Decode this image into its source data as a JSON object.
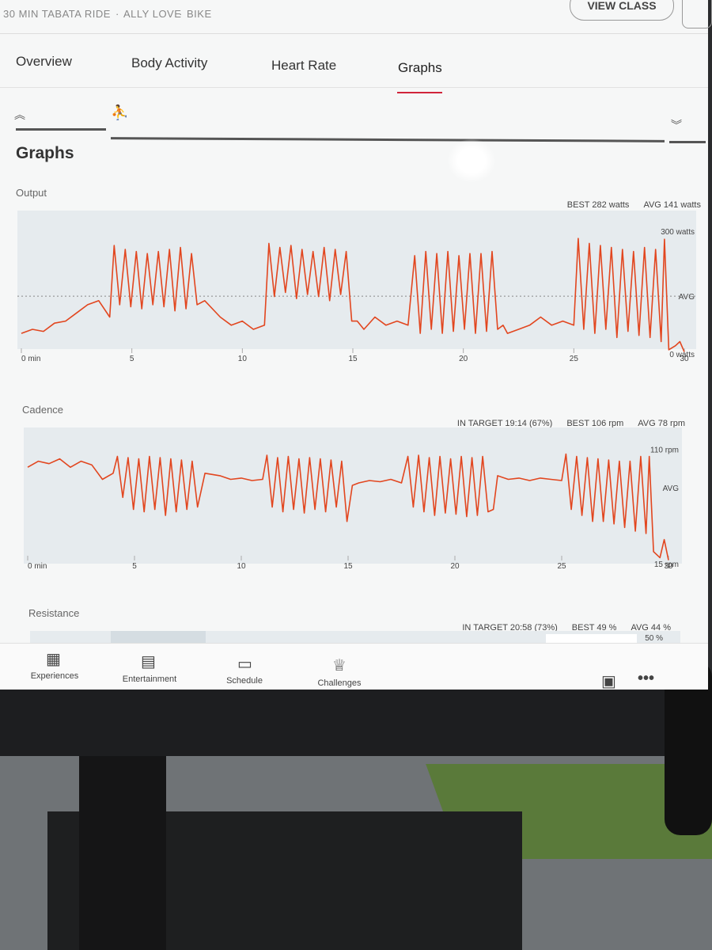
{
  "header": {
    "meta": [
      "30 MIN TABATA RIDE",
      "ALLY LOVE",
      "BIKE"
    ],
    "button": "VIEW CLASS"
  },
  "tabs": [
    "Overview",
    "Body Activity",
    "Heart Rate",
    "Graphs"
  ],
  "active_tab": 3,
  "section_title": "Graphs",
  "chart_data": [
    {
      "type": "line",
      "title": "Output",
      "stats": [
        "BEST 282 watts",
        "AVG 141 watts"
      ],
      "color": "#e2461f",
      "avg_line": true,
      "xlim": [
        0,
        30
      ],
      "xticks": [
        {
          "value": 0,
          "label": "0 min"
        },
        5,
        10,
        15,
        20,
        25,
        30
      ],
      "ylim": [
        0,
        350
      ],
      "yticks": [
        {
          "value": 300,
          "label": "300 watts"
        },
        {
          "value": 141,
          "label": "AVG"
        },
        {
          "value": 0,
          "label": "0 watts"
        }
      ],
      "x": [
        0,
        0.5,
        1,
        1.5,
        2,
        2.5,
        3,
        3.5,
        4,
        4.2,
        4.45,
        4.7,
        4.95,
        5.2,
        5.45,
        5.7,
        5.95,
        6.2,
        6.45,
        6.7,
        6.95,
        7.2,
        7.45,
        7.7,
        7.95,
        8.3,
        9,
        9.5,
        10,
        10.5,
        11,
        11.2,
        11.45,
        11.7,
        11.95,
        12.2,
        12.45,
        12.7,
        12.95,
        13.2,
        13.45,
        13.7,
        13.95,
        14.2,
        14.45,
        14.7,
        14.95,
        15.2,
        15.5,
        16,
        16.5,
        17,
        17.5,
        17.8,
        18.05,
        18.3,
        18.55,
        18.8,
        19.05,
        19.3,
        19.55,
        19.8,
        20.05,
        20.3,
        20.55,
        20.8,
        21.05,
        21.3,
        21.55,
        21.8,
        22,
        22.5,
        23,
        23.5,
        24,
        24.5,
        25,
        25.2,
        25.45,
        25.7,
        25.95,
        26.2,
        26.45,
        26.7,
        26.95,
        27.2,
        27.45,
        27.7,
        27.95,
        28.2,
        28.45,
        28.7,
        28.95,
        29.1,
        29.3,
        29.6,
        29.8,
        30
      ],
      "values": [
        50,
        60,
        55,
        75,
        80,
        100,
        120,
        130,
        90,
        265,
        120,
        255,
        115,
        250,
        110,
        245,
        120,
        250,
        115,
        255,
        105,
        260,
        110,
        245,
        120,
        130,
        90,
        70,
        80,
        60,
        70,
        270,
        140,
        260,
        150,
        265,
        135,
        255,
        145,
        250,
        140,
        260,
        130,
        255,
        145,
        250,
        80,
        80,
        60,
        90,
        70,
        80,
        70,
        240,
        50,
        250,
        60,
        245,
        50,
        250,
        55,
        240,
        60,
        245,
        50,
        245,
        55,
        250,
        60,
        70,
        50,
        60,
        70,
        90,
        70,
        80,
        70,
        282,
        60,
        270,
        50,
        265,
        60,
        260,
        40,
        255,
        55,
        250,
        45,
        260,
        40,
        255,
        30,
        280,
        10,
        20,
        30,
        5
      ]
    },
    {
      "type": "line",
      "title": "Cadence",
      "stats": [
        "IN TARGET 19:14 (67%)",
        "BEST 106 rpm",
        "AVG 78 rpm"
      ],
      "color": "#e2461f",
      "avg_line": false,
      "xlim": [
        0,
        30
      ],
      "xticks": [
        {
          "value": 0,
          "label": "0 min"
        },
        5,
        10,
        15,
        20,
        25,
        30
      ],
      "ylim": [
        15,
        128
      ],
      "yticks": [
        {
          "value": 110,
          "label": "110 rpm"
        },
        {
          "value": 78,
          "label": "AVG"
        },
        {
          "value": 15,
          "label": "15 rpm"
        }
      ],
      "x": [
        0,
        0.5,
        1,
        1.5,
        2,
        2.5,
        3,
        3.5,
        4,
        4.2,
        4.45,
        4.7,
        4.95,
        5.2,
        5.45,
        5.7,
        5.95,
        6.2,
        6.45,
        6.7,
        6.95,
        7.2,
        7.45,
        7.7,
        7.95,
        8.3,
        9,
        9.5,
        10,
        10.5,
        11,
        11.2,
        11.45,
        11.7,
        11.95,
        12.2,
        12.45,
        12.7,
        12.95,
        13.2,
        13.45,
        13.7,
        13.95,
        14.2,
        14.45,
        14.7,
        14.95,
        15.2,
        15.5,
        16,
        16.5,
        17,
        17.5,
        17.8,
        18.05,
        18.3,
        18.55,
        18.8,
        19.05,
        19.3,
        19.55,
        19.8,
        20.05,
        20.3,
        20.55,
        20.8,
        21.05,
        21.3,
        21.55,
        21.8,
        22,
        22.5,
        23,
        23.5,
        24,
        24.5,
        25,
        25.2,
        25.45,
        25.7,
        25.95,
        26.2,
        26.45,
        26.7,
        26.95,
        27.2,
        27.45,
        27.7,
        27.95,
        28.2,
        28.45,
        28.7,
        28.95,
        29.1,
        29.3,
        29.6,
        29.8,
        30
      ],
      "values": [
        95,
        100,
        98,
        102,
        95,
        100,
        97,
        85,
        90,
        104,
        70,
        103,
        60,
        102,
        58,
        104,
        60,
        103,
        55,
        102,
        58,
        101,
        60,
        100,
        62,
        90,
        88,
        85,
        86,
        84,
        85,
        105,
        62,
        103,
        58,
        104,
        60,
        102,
        57,
        103,
        60,
        102,
        58,
        101,
        62,
        100,
        50,
        80,
        82,
        84,
        83,
        85,
        82,
        104,
        62,
        105,
        58,
        103,
        55,
        104,
        57,
        102,
        56,
        104,
        54,
        103,
        55,
        104,
        58,
        60,
        88,
        85,
        86,
        84,
        86,
        85,
        84,
        106,
        60,
        104,
        55,
        103,
        50,
        102,
        50,
        101,
        48,
        100,
        45,
        100,
        42,
        104,
        40,
        104,
        25,
        20,
        35,
        18
      ]
    },
    {
      "type": "band",
      "title": "Resistance",
      "stats": [
        "IN TARGET 20:58 (73%)",
        "BEST 49 %",
        "AVG 44 %"
      ],
      "yticks": [
        {
          "value": 50,
          "label": "50 %"
        }
      ]
    }
  ],
  "nav": [
    "Experiences",
    "Entertainment",
    "Schedule",
    "Challenges"
  ]
}
